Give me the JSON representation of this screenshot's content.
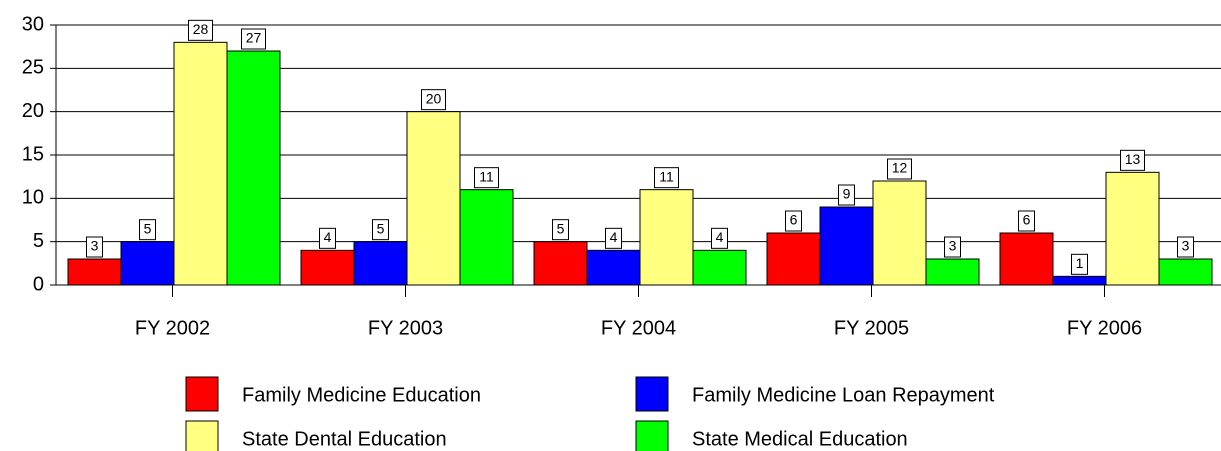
{
  "chart_data": {
    "type": "bar",
    "categories": [
      "FY 2002",
      "FY 2003",
      "FY 2004",
      "FY 2005",
      "FY 2006"
    ],
    "series": [
      {
        "name": "Family Medicine Education",
        "color": "#ff0000",
        "values": [
          3,
          4,
          5,
          6,
          6
        ]
      },
      {
        "name": "Family Medicine Loan Repayment",
        "color": "#0000ff",
        "values": [
          5,
          5,
          4,
          9,
          1
        ]
      },
      {
        "name": "State Dental Education",
        "color": "#ffff80",
        "values": [
          28,
          20,
          11,
          12,
          13
        ]
      },
      {
        "name": "State Medical Education",
        "color": "#00ff00",
        "values": [
          27,
          11,
          4,
          3,
          3
        ]
      }
    ],
    "ylim": [
      0,
      30
    ],
    "yticks": [
      0,
      5,
      10,
      15,
      20,
      25,
      30
    ],
    "grid": true
  }
}
